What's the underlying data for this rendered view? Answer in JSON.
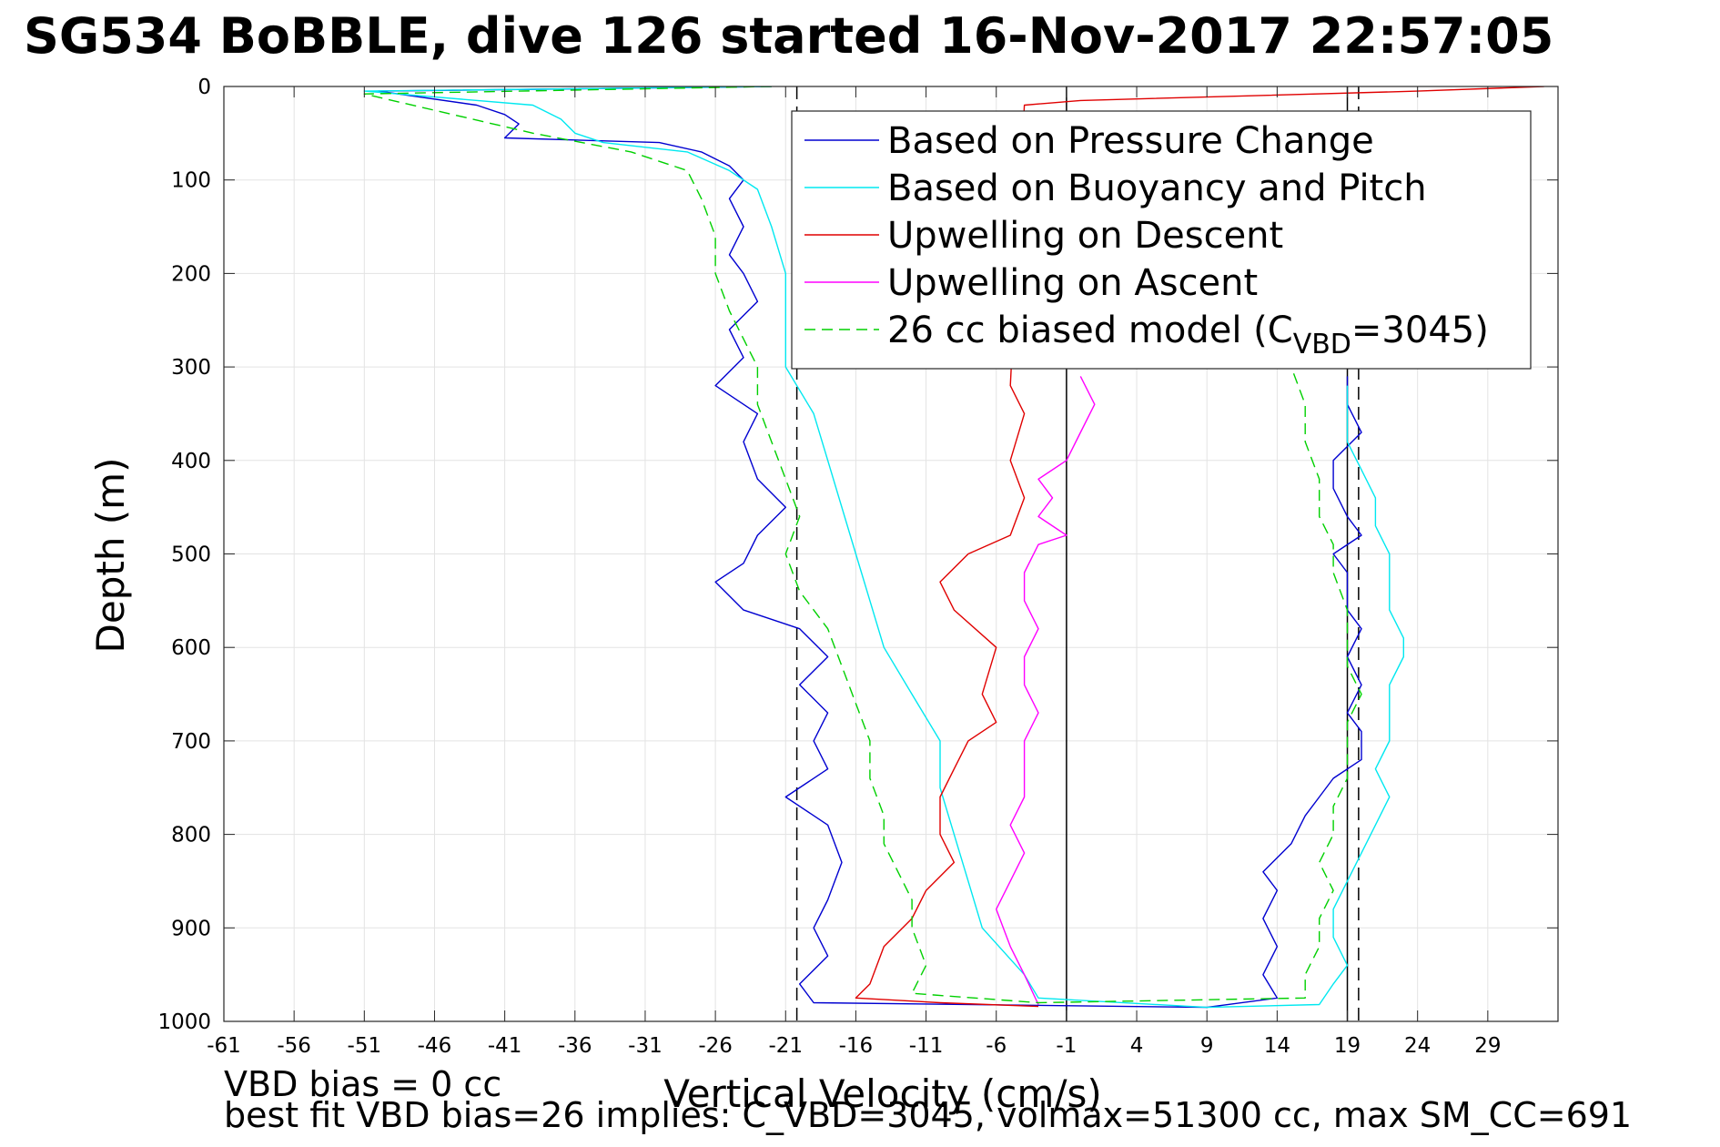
{
  "chart_data": {
    "type": "line",
    "title": "SG534 BoBBLE, dive 126 started 16-Nov-2017 22:57:05",
    "xlabel": "Vertical Velocity (cm/s)",
    "ylabel": "Depth (m)",
    "xlim": [
      -61,
      34
    ],
    "ylim": [
      0,
      1000
    ],
    "y_reversed": true,
    "xticks": [
      -61,
      -56,
      -51,
      -46,
      -41,
      -36,
      -31,
      -26,
      -21,
      -16,
      -11,
      -6,
      -1,
      4,
      9,
      14,
      19,
      24,
      29
    ],
    "yticks": [
      0,
      100,
      200,
      300,
      400,
      500,
      600,
      700,
      800,
      900,
      1000
    ],
    "grid": true,
    "legend_position": "top-right",
    "reference_lines": {
      "solid_x": [
        -1,
        19
      ],
      "dashed_x": [
        -20.2,
        19.8
      ],
      "colors": {
        "solid": "#000000",
        "dashed": "#000000"
      }
    },
    "series": [
      {
        "name": "Based on Pressure Change",
        "color": "#0000d0",
        "style": "solid",
        "points": [
          [
            -22,
            0
          ],
          [
            -50,
            5
          ],
          [
            -43,
            20
          ],
          [
            -41,
            30
          ],
          [
            -40,
            40
          ],
          [
            -41,
            55
          ],
          [
            -30,
            60
          ],
          [
            -27,
            70
          ],
          [
            -25,
            85
          ],
          [
            -24,
            100
          ],
          [
            -25,
            120
          ],
          [
            -24,
            150
          ],
          [
            -25,
            180
          ],
          [
            -24,
            200
          ],
          [
            -23,
            230
          ],
          [
            -25,
            260
          ],
          [
            -24,
            290
          ],
          [
            -26,
            320
          ],
          [
            -23,
            350
          ],
          [
            -24,
            380
          ],
          [
            -23,
            420
          ],
          [
            -21,
            450
          ],
          [
            -23,
            480
          ],
          [
            -24,
            510
          ],
          [
            -26,
            530
          ],
          [
            -24,
            560
          ],
          [
            -20,
            580
          ],
          [
            -18,
            610
          ],
          [
            -20,
            640
          ],
          [
            -18,
            670
          ],
          [
            -19,
            700
          ],
          [
            -18,
            730
          ],
          [
            -21,
            760
          ],
          [
            -18,
            790
          ],
          [
            -17,
            830
          ],
          [
            -18,
            870
          ],
          [
            -19,
            900
          ],
          [
            -18,
            930
          ],
          [
            -20,
            960
          ],
          [
            -19,
            980
          ],
          [
            9,
            985
          ],
          [
            14,
            975
          ],
          [
            13,
            950
          ],
          [
            14,
            920
          ],
          [
            13,
            890
          ],
          [
            14,
            860
          ],
          [
            13,
            840
          ],
          [
            15,
            810
          ],
          [
            16,
            780
          ],
          [
            17,
            760
          ],
          [
            18,
            740
          ],
          [
            20,
            720
          ],
          [
            20,
            690
          ],
          [
            19,
            670
          ],
          [
            20,
            640
          ],
          [
            19,
            610
          ],
          [
            20,
            580
          ],
          [
            19,
            560
          ],
          [
            19,
            520
          ],
          [
            18,
            500
          ],
          [
            20,
            480
          ],
          [
            19,
            460
          ],
          [
            18,
            430
          ],
          [
            18,
            400
          ],
          [
            20,
            370
          ],
          [
            19,
            340
          ],
          [
            19,
            310
          ]
        ]
      },
      {
        "name": "Based on Buoyancy and Pitch",
        "color": "#00e8f0",
        "style": "solid",
        "points": [
          [
            -22,
            0
          ],
          [
            -51,
            5
          ],
          [
            -39,
            20
          ],
          [
            -37,
            35
          ],
          [
            -36,
            50
          ],
          [
            -34,
            60
          ],
          [
            -28,
            70
          ],
          [
            -25,
            90
          ],
          [
            -23,
            110
          ],
          [
            -22,
            150
          ],
          [
            -21,
            200
          ],
          [
            -21,
            250
          ],
          [
            -21,
            300
          ],
          [
            -19,
            350
          ],
          [
            -18,
            400
          ],
          [
            -17,
            450
          ],
          [
            -16,
            500
          ],
          [
            -15,
            550
          ],
          [
            -14,
            600
          ],
          [
            -12,
            650
          ],
          [
            -10,
            700
          ],
          [
            -10,
            750
          ],
          [
            -9,
            800
          ],
          [
            -8,
            850
          ],
          [
            -7,
            900
          ],
          [
            -4,
            950
          ],
          [
            -3,
            975
          ],
          [
            9,
            985
          ],
          [
            17,
            982
          ],
          [
            18,
            960
          ],
          [
            19,
            940
          ],
          [
            18,
            910
          ],
          [
            18,
            880
          ],
          [
            19,
            850
          ],
          [
            20,
            820
          ],
          [
            21,
            790
          ],
          [
            22,
            760
          ],
          [
            21,
            730
          ],
          [
            22,
            700
          ],
          [
            22,
            670
          ],
          [
            22,
            640
          ],
          [
            23,
            610
          ],
          [
            23,
            590
          ],
          [
            22,
            560
          ],
          [
            22,
            530
          ],
          [
            22,
            500
          ],
          [
            21,
            470
          ],
          [
            21,
            440
          ],
          [
            20,
            410
          ],
          [
            19,
            380
          ],
          [
            19,
            350
          ],
          [
            19,
            320
          ]
        ]
      },
      {
        "name": "Upwelling on Descent",
        "color": "#e00000",
        "style": "solid",
        "points": [
          [
            33,
            0
          ],
          [
            24,
            5
          ],
          [
            0,
            15
          ],
          [
            -4,
            20
          ],
          [
            -5,
            320
          ],
          [
            -4,
            350
          ],
          [
            -5,
            400
          ],
          [
            -4,
            440
          ],
          [
            -5,
            480
          ],
          [
            -8,
            500
          ],
          [
            -10,
            530
          ],
          [
            -9,
            560
          ],
          [
            -6,
            600
          ],
          [
            -7,
            650
          ],
          [
            -6,
            680
          ],
          [
            -8,
            700
          ],
          [
            -9,
            730
          ],
          [
            -10,
            760
          ],
          [
            -10,
            800
          ],
          [
            -9,
            830
          ],
          [
            -11,
            860
          ],
          [
            -12,
            890
          ],
          [
            -14,
            920
          ],
          [
            -15,
            960
          ],
          [
            -16,
            975
          ],
          [
            -10,
            980
          ],
          [
            -3,
            984
          ]
        ]
      },
      {
        "name": "Upwelling on Ascent",
        "color": "#ff00ff",
        "style": "solid",
        "points": [
          [
            -3,
            982
          ],
          [
            -4,
            950
          ],
          [
            -5,
            920
          ],
          [
            -6,
            880
          ],
          [
            -5,
            850
          ],
          [
            -4,
            820
          ],
          [
            -5,
            790
          ],
          [
            -4,
            760
          ],
          [
            -4,
            730
          ],
          [
            -4,
            700
          ],
          [
            -3,
            670
          ],
          [
            -4,
            640
          ],
          [
            -4,
            610
          ],
          [
            -3,
            580
          ],
          [
            -4,
            550
          ],
          [
            -4,
            520
          ],
          [
            -3,
            490
          ],
          [
            -1,
            480
          ],
          [
            -3,
            460
          ],
          [
            -2,
            440
          ],
          [
            -3,
            420
          ],
          [
            -1,
            400
          ],
          [
            0,
            370
          ],
          [
            1,
            340
          ],
          [
            0,
            310
          ]
        ]
      },
      {
        "name": "26 cc biased model (C_VBD=3045)",
        "legend_label": "26 cc biased model (C",
        "legend_sub": "VBD",
        "legend_suffix": "=3045)",
        "color": "#00d000",
        "style": "dashed",
        "points": [
          [
            -22,
            0
          ],
          [
            -51,
            8
          ],
          [
            -39,
            50
          ],
          [
            -32,
            70
          ],
          [
            -28,
            90
          ],
          [
            -27,
            120
          ],
          [
            -26,
            160
          ],
          [
            -26,
            200
          ],
          [
            -25,
            240
          ],
          [
            -24,
            270
          ],
          [
            -23,
            300
          ],
          [
            -23,
            340
          ],
          [
            -22,
            380
          ],
          [
            -21,
            420
          ],
          [
            -20,
            460
          ],
          [
            -21,
            500
          ],
          [
            -20,
            540
          ],
          [
            -18,
            580
          ],
          [
            -17,
            620
          ],
          [
            -16,
            660
          ],
          [
            -15,
            700
          ],
          [
            -15,
            740
          ],
          [
            -14,
            780
          ],
          [
            -14,
            810
          ],
          [
            -13,
            840
          ],
          [
            -12,
            870
          ],
          [
            -12,
            900
          ],
          [
            -11,
            940
          ],
          [
            -12,
            970
          ],
          [
            -3,
            980
          ],
          [
            16,
            975
          ],
          [
            16,
            950
          ],
          [
            17,
            920
          ],
          [
            17,
            890
          ],
          [
            18,
            860
          ],
          [
            17,
            830
          ],
          [
            18,
            800
          ],
          [
            18,
            770
          ],
          [
            19,
            740
          ],
          [
            19,
            710
          ],
          [
            19,
            680
          ],
          [
            20,
            650
          ],
          [
            19,
            620
          ],
          [
            19,
            590
          ],
          [
            19,
            560
          ],
          [
            18,
            520
          ],
          [
            18,
            490
          ],
          [
            17,
            460
          ],
          [
            17,
            420
          ],
          [
            16,
            380
          ],
          [
            16,
            340
          ],
          [
            15,
            300
          ]
        ]
      }
    ]
  },
  "annotations": {
    "line1": "VBD bias = 0 cc",
    "line2": "best fit VBD bias=26 implies: C_VBD=3045, volmax=51300 cc, max SM_CC=691"
  }
}
